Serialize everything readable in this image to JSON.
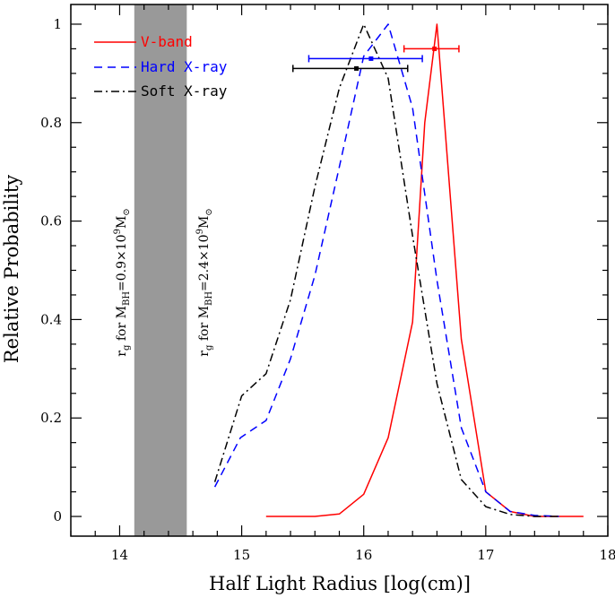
{
  "chart_data": {
    "type": "line",
    "xlabel": "Half Light Radius [log(cm)]",
    "ylabel": "Relative Probability",
    "xlim": [
      13.6,
      18.0
    ],
    "ylim": [
      -0.04,
      1.04
    ],
    "x_ticks": [
      {
        "value": 14,
        "label": "14"
      },
      {
        "value": 15,
        "label": "15"
      },
      {
        "value": 16,
        "label": "16"
      },
      {
        "value": 17,
        "label": "17"
      },
      {
        "value": 18,
        "label": "18"
      }
    ],
    "y_ticks": [
      {
        "value": 0,
        "label": "0"
      },
      {
        "value": 0.2,
        "label": "0.2"
      },
      {
        "value": 0.4,
        "label": "0.4"
      },
      {
        "value": 0.6,
        "label": "0.6"
      },
      {
        "value": 0.8,
        "label": "0.8"
      },
      {
        "value": 1,
        "label": "1"
      }
    ],
    "x_minor_step": 0.2,
    "y_minor_step": 0.05,
    "grid": false,
    "legend_position": "top-left",
    "shaded_band": {
      "x": [
        14.12,
        14.55
      ],
      "color": "#999999",
      "labels": {
        "left": {
          "rg": "r",
          "rg_sub": "g",
          "text1": " for M",
          "sub": "BH",
          "text2": "=0.9×10",
          "sup": "9",
          "text3": "M",
          "sun": "⊙"
        },
        "right": {
          "rg": "r",
          "rg_sub": "g",
          "text1": " for M",
          "sub": "BH",
          "text2": "=2.4×10",
          "sup": "9",
          "text3": "M",
          "sun": "⊙"
        }
      }
    },
    "series": [
      {
        "name": "V-band",
        "color": "#ff0000",
        "dash": "solid",
        "x": [
          15.2,
          15.6,
          15.8,
          16.0,
          16.2,
          16.4,
          16.5,
          16.6,
          16.8,
          17.0,
          17.2,
          17.4,
          17.6,
          17.8
        ],
        "y": [
          0.0,
          0.0,
          0.005,
          0.045,
          0.16,
          0.395,
          0.8,
          1.0,
          0.36,
          0.05,
          0.01,
          0.0,
          0.0,
          0.0
        ],
        "errorbar": {
          "x": 16.58,
          "y": 0.95,
          "xerr_low": 16.33,
          "xerr_high": 16.78
        }
      },
      {
        "name": "Hard X-ray",
        "color": "#0000ff",
        "dash": "dashed",
        "x": [
          14.78,
          14.99,
          15.2,
          15.4,
          15.6,
          15.8,
          16.0,
          16.2,
          16.4,
          16.6,
          16.8,
          17.0,
          17.2,
          17.4,
          17.6
        ],
        "y": [
          0.06,
          0.16,
          0.195,
          0.32,
          0.49,
          0.71,
          0.935,
          1.0,
          0.83,
          0.48,
          0.18,
          0.05,
          0.01,
          0.002,
          0.0
        ],
        "errorbar": {
          "x": 16.06,
          "y": 0.93,
          "xerr_low": 15.55,
          "xerr_high": 16.48
        }
      },
      {
        "name": "Soft X-ray",
        "color": "#000000",
        "dash": "dashdot",
        "x": [
          14.78,
          15.0,
          15.2,
          15.4,
          15.6,
          15.8,
          16.0,
          16.2,
          16.4,
          16.6,
          16.8,
          17.0,
          17.2,
          17.4,
          17.6
        ],
        "y": [
          0.07,
          0.245,
          0.29,
          0.44,
          0.67,
          0.87,
          1.0,
          0.89,
          0.57,
          0.27,
          0.075,
          0.02,
          0.004,
          0.0,
          0.0
        ],
        "errorbar": {
          "x": 15.94,
          "y": 0.91,
          "xerr_low": 15.42,
          "xerr_high": 16.36
        }
      }
    ]
  }
}
